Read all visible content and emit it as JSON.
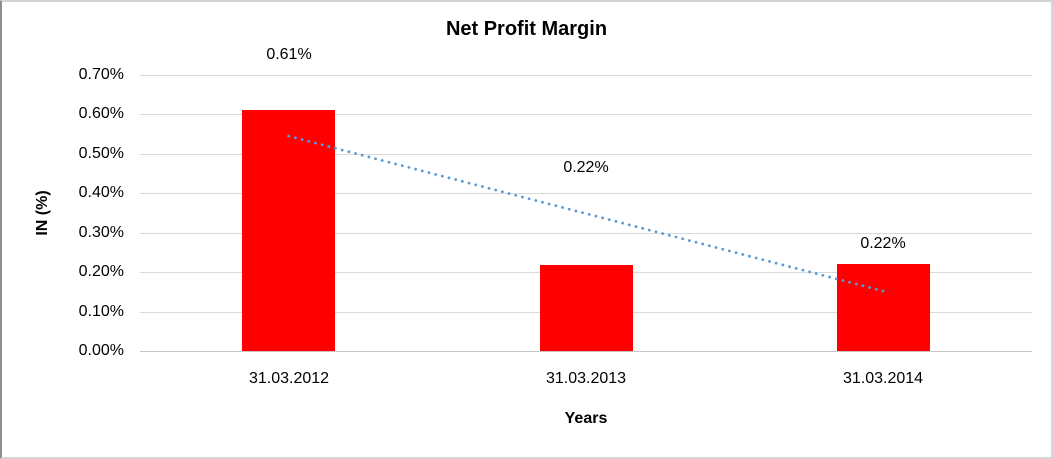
{
  "chart_data": {
    "type": "bar",
    "title": "Net Profit Margin",
    "xlabel": "Years",
    "ylabel": "IN (%)",
    "categories": [
      "31.03.2012",
      "31.03.2013",
      "31.03.2014"
    ],
    "values": [
      0.61,
      0.22,
      0.22
    ],
    "bar_heights_precise": [
      0.61,
      0.218,
      0.221
    ],
    "data_labels": [
      "0.61%",
      "0.22%",
      "0.22%"
    ],
    "data_label_y_values": [
      0.751,
      0.464,
      0.271
    ],
    "y_ticks": [
      "0.70%",
      "0.60%",
      "0.50%",
      "0.40%",
      "0.30%",
      "0.20%",
      "0.10%",
      "0.00%"
    ],
    "ylim": [
      0,
      0.7
    ],
    "grid": true,
    "legend": "none",
    "bar_color": "#ff0000",
    "trendline": {
      "type": "linear",
      "style": "dotted",
      "color": "#5b9bd5",
      "start_value": 0.545,
      "end_value": 0.152
    }
  }
}
